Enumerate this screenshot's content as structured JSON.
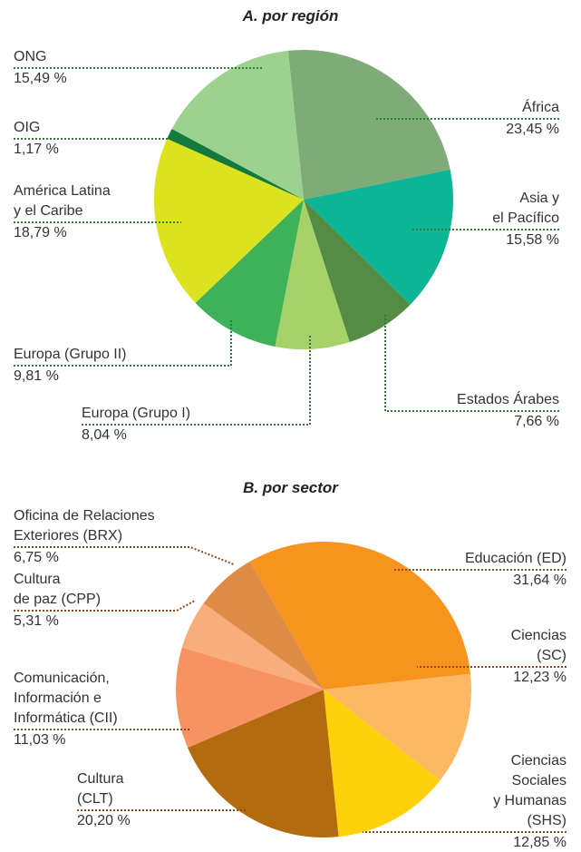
{
  "chart_data": [
    {
      "type": "pie",
      "title": "A. por región",
      "categories": [
        "África",
        "Asia y\nel Pacífico",
        "Estados Árabes",
        "Europa (Grupo I)",
        "Europa (Grupo II)",
        "América Latina\ny el Caribe",
        "OIG",
        "ONG"
      ],
      "values": [
        23.45,
        15.58,
        7.66,
        8.04,
        9.81,
        18.79,
        1.17,
        15.49
      ],
      "value_labels": [
        "23,45 %",
        "15,58 %",
        "7,66 %",
        "8,04 %",
        "9,81 %",
        "18,79 %",
        "1,17 %",
        "15,49 %"
      ],
      "colors": [
        "#7fab78",
        "#0bb596",
        "#548c43",
        "#a6d26a",
        "#3fb158",
        "#dde21f",
        "#137a3c",
        "#9dd18f"
      ]
    },
    {
      "type": "pie",
      "title": "B. por sector",
      "categories": [
        "Educación (ED)",
        "Ciencias\n(SC)",
        "Ciencias\nSociales\ny Humanas\n(SHS)",
        "Cultura\n(CLT)",
        "Comunicación,\nInformación e\nInformática (CII)",
        "Cultura\nde paz (CPP)",
        "Oficina de Relaciones\nExteriores (BRX)"
      ],
      "values": [
        31.64,
        12.23,
        12.85,
        20.2,
        11.03,
        5.31,
        6.75
      ],
      "value_labels": [
        "31,64 %",
        "12,23 %",
        "12,85 %",
        "20,20 %",
        "11,03 %",
        "5,31 %",
        "6,75 %"
      ],
      "colors": [
        "#f7941d",
        "#fdb863",
        "#fdd20a",
        "#b46b10",
        "#f79361",
        "#f8ad7b",
        "#dd8b45"
      ]
    }
  ]
}
